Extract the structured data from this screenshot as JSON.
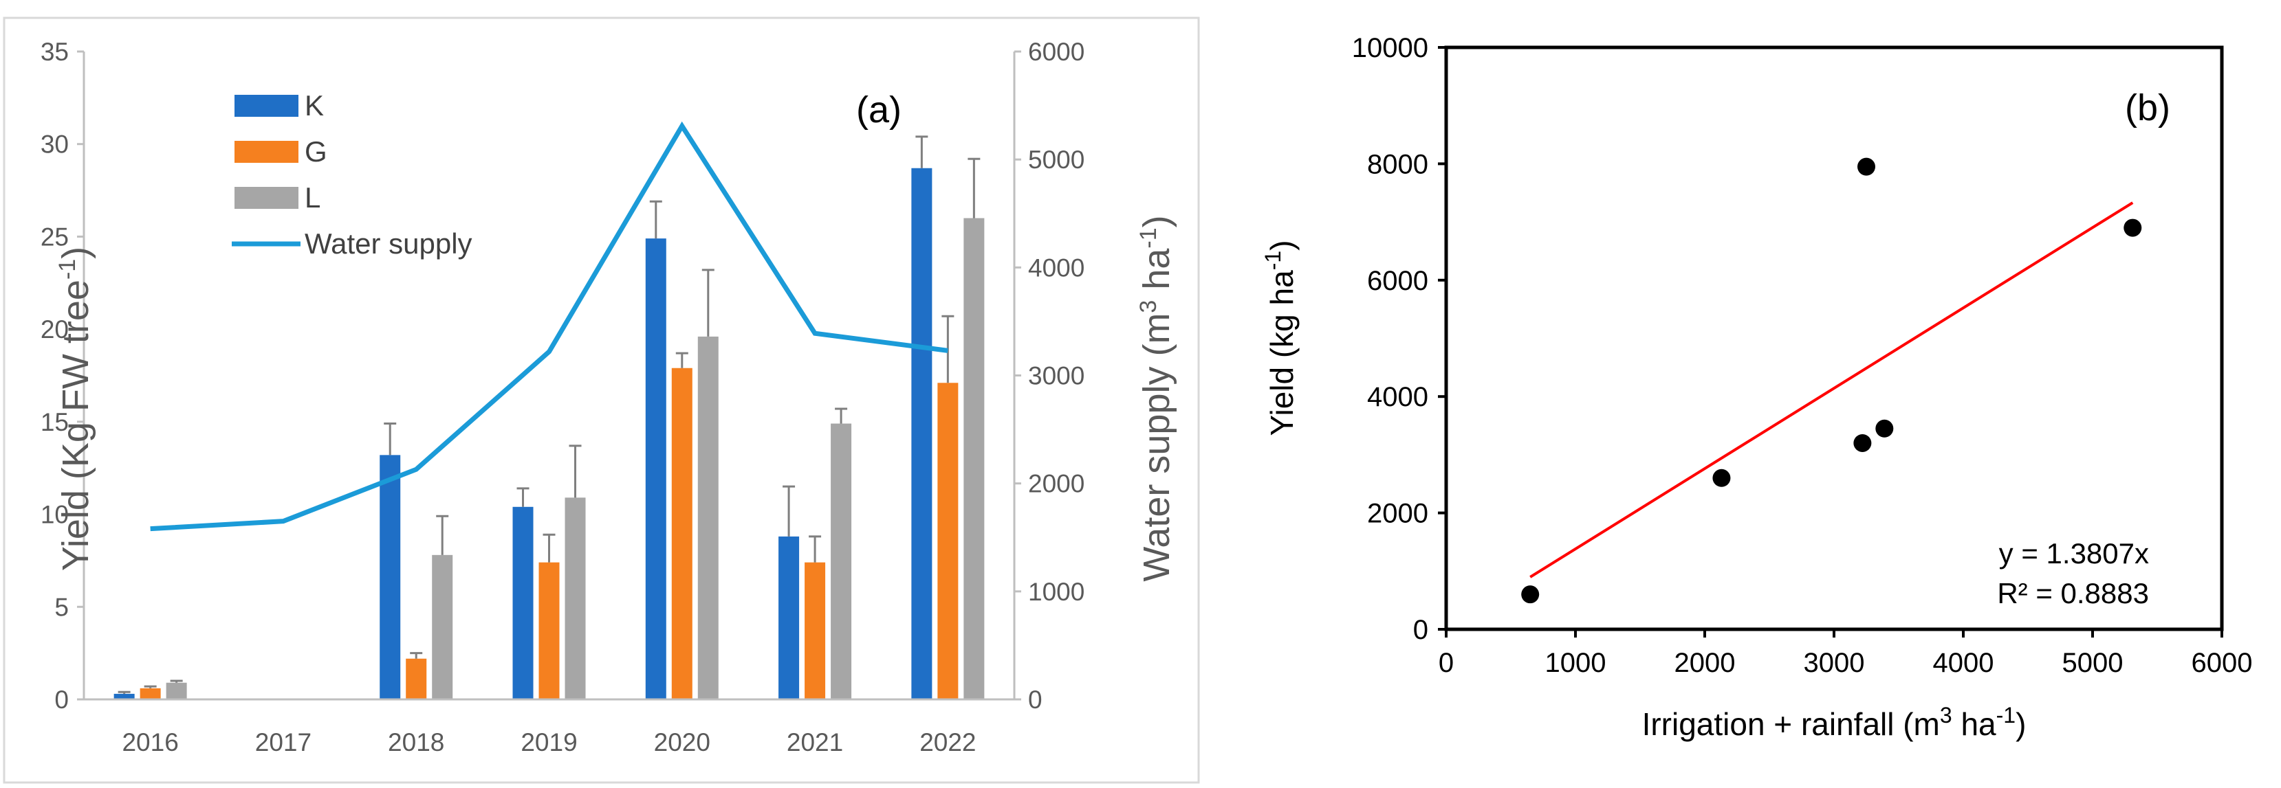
{
  "chart_data": [
    {
      "panel": "(a)",
      "type": "bar",
      "categories": [
        "2016",
        "2017",
        "2018",
        "2019",
        "2020",
        "2021",
        "2022"
      ],
      "series": [
        {
          "name": "K",
          "color": "#1F6FC6",
          "values": [
            0.3,
            null,
            13.2,
            10.4,
            24.9,
            8.8,
            28.7
          ],
          "errors": [
            0.1,
            null,
            1.7,
            1.0,
            2.0,
            2.7,
            1.7
          ]
        },
        {
          "name": "G",
          "color": "#F5801F",
          "values": [
            0.6,
            null,
            2.2,
            7.4,
            17.9,
            7.4,
            17.1
          ],
          "errors": [
            0.1,
            null,
            0.3,
            1.5,
            0.8,
            1.4,
            3.6
          ]
        },
        {
          "name": "L",
          "color": "#A6A6A6",
          "values": [
            0.9,
            null,
            7.8,
            10.9,
            19.6,
            14.9,
            26.0
          ],
          "errors": [
            0.1,
            null,
            2.1,
            2.8,
            3.6,
            0.8,
            3.2
          ]
        }
      ],
      "line": {
        "name": "Water supply",
        "color": "#1B9BD8",
        "axis": "right",
        "values": [
          1580,
          1650,
          2130,
          3220,
          5310,
          3390,
          3230
        ]
      },
      "ylabel": "Yield (Kg FW tree⁻¹)",
      "y2label": "Water supply  (m³ ha⁻¹)",
      "ylim": [
        0,
        35
      ],
      "yticks": [
        "0",
        "5",
        "10",
        "15",
        "20",
        "25",
        "30",
        "35"
      ],
      "y2lim": [
        0,
        6000
      ],
      "y2ticks": [
        "0",
        "1000",
        "2000",
        "3000",
        "4000",
        "5000",
        "6000"
      ],
      "legend": [
        "K",
        "G",
        "L",
        "Water supply"
      ],
      "legend_position": "top-left",
      "grid": false
    },
    {
      "panel": "(b)",
      "type": "scatter",
      "points": [
        {
          "x": 650,
          "y": 600
        },
        {
          "x": 2130,
          "y": 2600
        },
        {
          "x": 3220,
          "y": 3200
        },
        {
          "x": 3250,
          "y": 7950
        },
        {
          "x": 3390,
          "y": 3450
        },
        {
          "x": 5310,
          "y": 6900
        }
      ],
      "point_color": "#000000",
      "trendline": {
        "slope": 1.3807,
        "x_range": [
          650,
          5310
        ],
        "color": "#FF0000",
        "equation": "y = 1.3807x",
        "r2": "R² = 0.8883"
      },
      "xlabel": "Irrigation + rainfall (m³ ha⁻¹)",
      "ylabel": "Yield (kg ha⁻¹)",
      "xlim": [
        0,
        6000
      ],
      "xticks": [
        "0",
        "1000",
        "2000",
        "3000",
        "4000",
        "5000",
        "6000"
      ],
      "ylim": [
        0,
        10000
      ],
      "yticks": [
        "0",
        "2000",
        "4000",
        "6000",
        "8000",
        "10000"
      ],
      "grid": false
    }
  ]
}
